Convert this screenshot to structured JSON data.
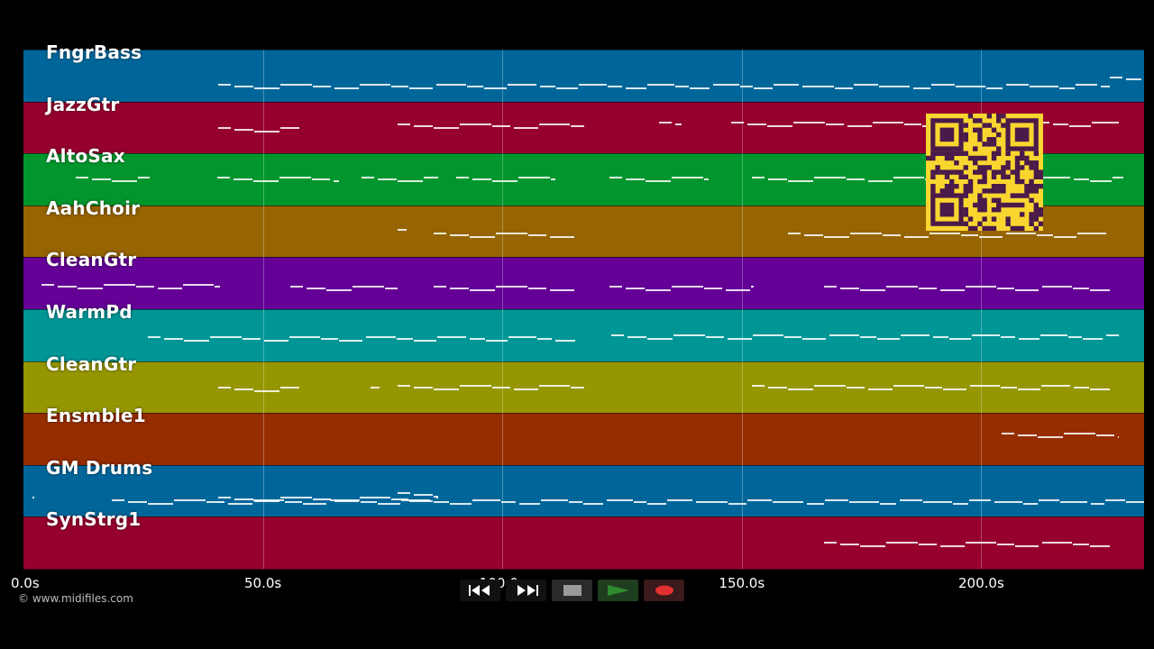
{
  "tracks": [
    {
      "name": "FngrBass",
      "color": "#00669a"
    },
    {
      "name": "JazzGtr",
      "color": "#96002d"
    },
    {
      "name": "AltoSax",
      "color": "#00962d"
    },
    {
      "name": "AahChoir",
      "color": "#966400"
    },
    {
      "name": "CleanGtr",
      "color": "#640096"
    },
    {
      "name": "WarmPd",
      "color": "#009696"
    },
    {
      "name": "CleanGtr",
      "color": "#969600"
    },
    {
      "name": "Ensmble1",
      "color": "#962d00"
    },
    {
      "name": "GM Drums",
      "color": "#00669a"
    },
    {
      "name": "SynStrg1",
      "color": "#96002d"
    }
  ],
  "timeline": {
    "ticks": [
      "0.0s",
      "50.0s",
      "100.0s",
      "150.0s",
      "200.0s"
    ],
    "tick_seconds": [
      0,
      50,
      100,
      150,
      200
    ],
    "duration_seconds": 234
  },
  "copyright": "© www.midifiles.com",
  "transport": {
    "rewind_icon": "rewind-icon",
    "fast_forward_icon": "fast-forward-icon",
    "stop_icon": "stop-icon",
    "play_icon": "play-icon",
    "record_icon": "record-icon",
    "play_color": "#2e8b2e",
    "record_color": "#e03030"
  },
  "qr_code": {
    "color": "#f9d62f",
    "icon": "qr-code-icon"
  }
}
